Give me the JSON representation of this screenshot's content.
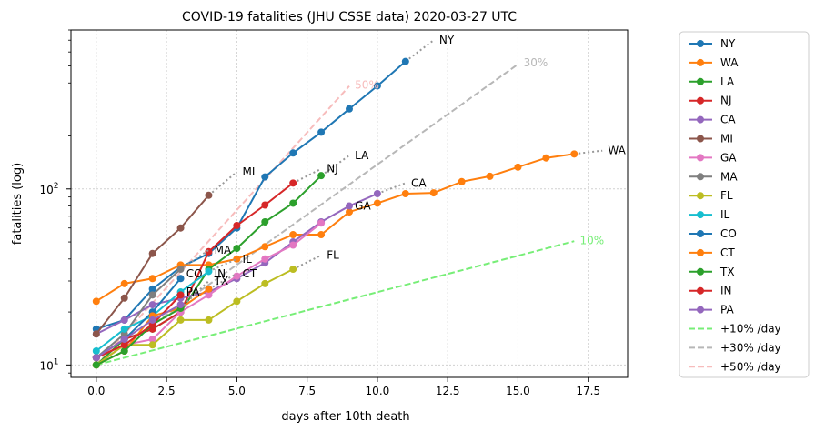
{
  "chart_data": {
    "type": "line",
    "title": "COVID-19 fatalities (JHU CSSE data) 2020-03-27 UTC",
    "xlabel": "days after 10th death",
    "ylabel": "fatalities (log)",
    "xlim": [
      -0.9,
      18.9
    ],
    "ylim": [
      8.5,
      800
    ],
    "yscale": "log",
    "grid": true,
    "legend_position": "outside-right",
    "x_ticks": [
      {
        "value": 0,
        "label": "0.0"
      },
      {
        "value": 2.5,
        "label": "2.5"
      },
      {
        "value": 5,
        "label": "5.0"
      },
      {
        "value": 7.5,
        "label": "7.5"
      },
      {
        "value": 10,
        "label": "10.0"
      },
      {
        "value": 12.5,
        "label": "12.5"
      },
      {
        "value": 15,
        "label": "15.0"
      },
      {
        "value": 17.5,
        "label": "17.5"
      }
    ],
    "y_ticks": [
      {
        "value": 10,
        "label": "10",
        "sup": "1"
      },
      {
        "value": 100,
        "label": "10",
        "sup": "2"
      }
    ],
    "series": [
      {
        "name": "NY",
        "color": "#1f77b4",
        "x": [
          0,
          1,
          2,
          3,
          4,
          5,
          6,
          7,
          8,
          9,
          10,
          11
        ],
        "y": [
          16,
          18,
          27,
          36,
          43,
          60,
          117,
          160,
          210,
          285,
          385,
          530
        ],
        "ext_x": [
          11,
          12
        ],
        "ext_y": [
          530,
          700
        ],
        "label": "NY",
        "label_x": 12.2,
        "label_y": 700
      },
      {
        "name": "WA",
        "color": "#ff7f0e",
        "x": [
          0,
          1,
          2,
          3,
          4,
          5,
          6,
          7,
          8,
          9,
          10,
          11,
          12,
          13,
          14,
          15,
          16,
          17
        ],
        "y": [
          23,
          29,
          31,
          37,
          37,
          40,
          47,
          55,
          55,
          74,
          83,
          94,
          95,
          110,
          118,
          133,
          150,
          158
        ],
        "ext_x": [
          17,
          18
        ],
        "ext_y": [
          158,
          165
        ],
        "label": "WA",
        "label_x": 18.2,
        "label_y": 165
      },
      {
        "name": "LA",
        "color": "#2ca02c",
        "x": [
          0,
          1,
          2,
          3,
          4,
          5,
          6,
          7,
          8
        ],
        "y": [
          10,
          14,
          16,
          20,
          35,
          46,
          65,
          83,
          119
        ],
        "ext_x": [
          8,
          9
        ],
        "ext_y": [
          119,
          155
        ],
        "label": "LA",
        "label_x": 9.2,
        "label_y": 155
      },
      {
        "name": "NJ",
        "color": "#d62728",
        "x": [
          0,
          1,
          2,
          3,
          4,
          5,
          6,
          7
        ],
        "y": [
          11,
          14,
          16,
          20,
          44,
          62,
          81,
          108
        ],
        "ext_x": [
          7,
          8
        ],
        "ext_y": [
          108,
          130
        ],
        "label": "NJ",
        "label_x": 8.2,
        "label_y": 130
      },
      {
        "name": "CA",
        "color": "#9467bd",
        "x": [
          0,
          1,
          2,
          3,
          4,
          5,
          6,
          7,
          8,
          9,
          10
        ],
        "y": [
          15,
          18,
          22,
          24,
          26,
          31,
          38,
          50,
          65,
          80,
          94
        ],
        "ext_x": [
          10,
          11
        ],
        "ext_y": [
          94,
          108
        ],
        "label": "CA",
        "label_x": 11.2,
        "label_y": 108
      },
      {
        "name": "MI",
        "color": "#8c564b",
        "x": [
          0,
          1,
          2,
          3,
          4
        ],
        "y": [
          15,
          24,
          43,
          60,
          92
        ],
        "ext_x": [
          4,
          5
        ],
        "ext_y": [
          92,
          125
        ],
        "label": "MI",
        "label_x": 5.2,
        "label_y": 125
      },
      {
        "name": "GA",
        "color": "#e377c2",
        "x": [
          0,
          1,
          2,
          3,
          4,
          5,
          6,
          7,
          8
        ],
        "y": [
          10,
          13,
          14,
          20,
          25,
          32,
          40,
          48,
          64
        ],
        "ext_x": [],
        "ext_y": [],
        "label": "GA",
        "label_x": 9.2,
        "label_y": 80
      },
      {
        "name": "MA",
        "color": "#7f7f7f",
        "x": [
          0,
          1,
          2,
          3
        ],
        "y": [
          11,
          15,
          25,
          35
        ],
        "ext_x": [
          3,
          4
        ],
        "ext_y": [
          35,
          45
        ],
        "label": "MA",
        "label_x": 4.2,
        "label_y": 45
      },
      {
        "name": "FL",
        "color": "#bcbd22",
        "x": [
          0,
          1,
          2,
          3,
          4,
          5,
          6,
          7
        ],
        "y": [
          10,
          13,
          13,
          18,
          18,
          23,
          29,
          35
        ],
        "ext_x": [
          7,
          8
        ],
        "ext_y": [
          35,
          42
        ],
        "label": "FL",
        "label_x": 8.2,
        "label_y": 42
      },
      {
        "name": "IL",
        "color": "#17becf",
        "x": [
          0,
          1,
          2,
          3,
          4
        ],
        "y": [
          12,
          16,
          19,
          26,
          34
        ],
        "ext_x": [
          4,
          5
        ],
        "ext_y": [
          34,
          40
        ],
        "label": "IL",
        "label_x": 5.2,
        "label_y": 40
      },
      {
        "name": "CO",
        "color": "#1f77b4",
        "x": [
          0,
          1,
          2,
          3
        ],
        "y": [
          11,
          14,
          20,
          31
        ],
        "ext_x": [],
        "ext_y": [],
        "label": "CO",
        "label_x": 3.2,
        "label_y": 33
      },
      {
        "name": "CT",
        "color": "#ff7f0e",
        "x": [
          0,
          1,
          2,
          3,
          4
        ],
        "y": [
          10,
          12,
          19,
          21,
          27
        ],
        "ext_x": [
          4,
          5
        ],
        "ext_y": [
          27,
          33
        ],
        "label": "CT",
        "label_x": 5.2,
        "label_y": 33
      },
      {
        "name": "TX",
        "color": "#2ca02c",
        "x": [
          0,
          1,
          2,
          3
        ],
        "y": [
          10,
          12,
          17,
          21
        ],
        "ext_x": [
          3,
          4
        ],
        "ext_y": [
          21,
          30
        ],
        "label": "TX",
        "label_x": 4.2,
        "label_y": 30
      },
      {
        "name": "IN",
        "color": "#d62728",
        "x": [
          0,
          1,
          2,
          3
        ],
        "y": [
          11,
          13,
          17,
          25
        ],
        "ext_x": [],
        "ext_y": [],
        "label": "IN",
        "label_x": 4.2,
        "label_y": 33
      },
      {
        "name": "PA",
        "color": "#9467bd",
        "x": [
          0,
          1,
          2,
          3
        ],
        "y": [
          11,
          14,
          18,
          22
        ],
        "ext_x": [],
        "ext_y": [],
        "label": "PA",
        "label_x": 3.2,
        "label_y": 26
      }
    ],
    "reference_lines": [
      {
        "name": "+10% /day",
        "color": "#77ee77",
        "x": [
          0,
          17
        ],
        "y": [
          10,
          50.5
        ],
        "label": "10%",
        "label_x": 17.2,
        "label_y": 51
      },
      {
        "name": "+30% /day",
        "color": "#b7b7b7",
        "x": [
          0,
          15
        ],
        "y": [
          10,
          511
        ],
        "label": "30%",
        "label_x": 15.2,
        "label_y": 520
      },
      {
        "name": "+50% /day",
        "color": "#f7bcbc",
        "x": [
          0,
          9
        ],
        "y": [
          10,
          384
        ],
        "label": "50%",
        "label_x": 9.2,
        "label_y": 390
      }
    ]
  }
}
